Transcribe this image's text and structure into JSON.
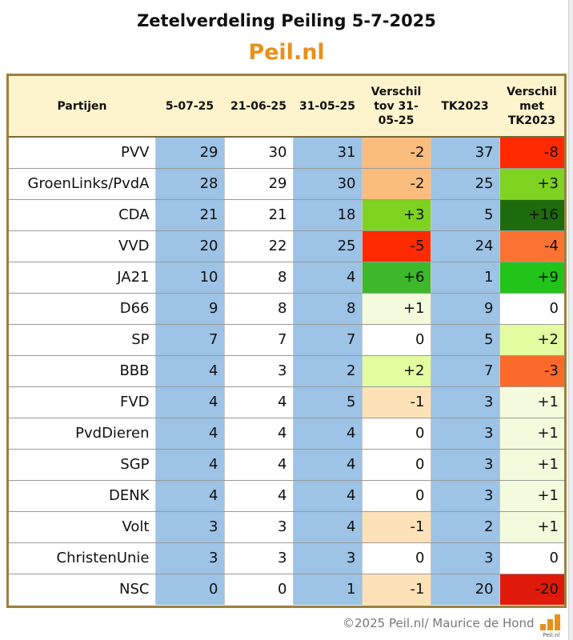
{
  "title": "Zetelverdeling Peiling 5-7-2025",
  "brand": "Peil.nl",
  "footer": "©2025 Peil.nl/ Maurice de Hond",
  "logo_text": "Peil.nl",
  "colors": {
    "header_bg": "#fdf3cc",
    "frame_border": "#9b8040",
    "blue": "#9dc3e6",
    "brand_orange": "#e8901a"
  },
  "chart_data": {
    "type": "table",
    "title": "Zetelverdeling Peiling 5-7-2025",
    "columns": [
      "Partijen",
      "5-07-25",
      "21-06-25",
      "31-05-25",
      "Verschil tov 31-05-25",
      "TK2023",
      "Verschil met TK2023"
    ],
    "rows": [
      {
        "party": "PVV",
        "values": [
          "29",
          "30",
          "31",
          "-2",
          "37",
          "-8"
        ],
        "diff1_color": "#fbbd7e",
        "diff2_color": "#ff2a00"
      },
      {
        "party": "GroenLinks/PvdA",
        "values": [
          "28",
          "29",
          "30",
          "-2",
          "25",
          "+3"
        ],
        "diff1_color": "#fbbd7e",
        "diff2_color": "#7ed321"
      },
      {
        "party": "CDA",
        "values": [
          "21",
          "21",
          "18",
          "+3",
          "5",
          "+16"
        ],
        "diff1_color": "#7ed321",
        "diff2_color": "#1e6b0e"
      },
      {
        "party": "VVD",
        "values": [
          "20",
          "22",
          "25",
          "-5",
          "24",
          "-4"
        ],
        "diff1_color": "#ff2a00",
        "diff2_color": "#fb7232"
      },
      {
        "party": "JA21",
        "values": [
          "10",
          "8",
          "4",
          "+6",
          "1",
          "+9"
        ],
        "diff1_color": "#3cb82a",
        "diff2_color": "#22c41a"
      },
      {
        "party": "D66",
        "values": [
          "9",
          "8",
          "8",
          "+1",
          "9",
          "0"
        ],
        "diff1_color": "#f3fbdc",
        "diff2_color": "#ffffff"
      },
      {
        "party": "SP",
        "values": [
          "7",
          "7",
          "7",
          "0",
          "5",
          "+2"
        ],
        "diff1_color": "#ffffff",
        "diff2_color": "#e2fca0"
      },
      {
        "party": "BBB",
        "values": [
          "4",
          "3",
          "2",
          "+2",
          "7",
          "-3"
        ],
        "diff1_color": "#e2fca0",
        "diff2_color": "#fb6a2a"
      },
      {
        "party": "FVD",
        "values": [
          "4",
          "4",
          "5",
          "-1",
          "3",
          "+1"
        ],
        "diff1_color": "#fde2b8",
        "diff2_color": "#f3fbdc"
      },
      {
        "party": "PvdDieren",
        "values": [
          "4",
          "4",
          "4",
          "0",
          "3",
          "+1"
        ],
        "diff1_color": "#ffffff",
        "diff2_color": "#f3fbdc"
      },
      {
        "party": "SGP",
        "values": [
          "4",
          "4",
          "4",
          "0",
          "3",
          "+1"
        ],
        "diff1_color": "#ffffff",
        "diff2_color": "#f3fbdc"
      },
      {
        "party": "DENK",
        "values": [
          "4",
          "4",
          "4",
          "0",
          "3",
          "+1"
        ],
        "diff1_color": "#ffffff",
        "diff2_color": "#f3fbdc"
      },
      {
        "party": "Volt",
        "values": [
          "3",
          "3",
          "4",
          "-1",
          "2",
          "+1"
        ],
        "diff1_color": "#fde2b8",
        "diff2_color": "#f3fbdc"
      },
      {
        "party": "ChristenUnie",
        "values": [
          "3",
          "3",
          "3",
          "0",
          "3",
          "0"
        ],
        "diff1_color": "#ffffff",
        "diff2_color": "#ffffff"
      },
      {
        "party": "NSC",
        "values": [
          "0",
          "0",
          "1",
          "-1",
          "20",
          "-20"
        ],
        "diff1_color": "#fde2b8",
        "diff2_color": "#e01a0a"
      }
    ]
  }
}
